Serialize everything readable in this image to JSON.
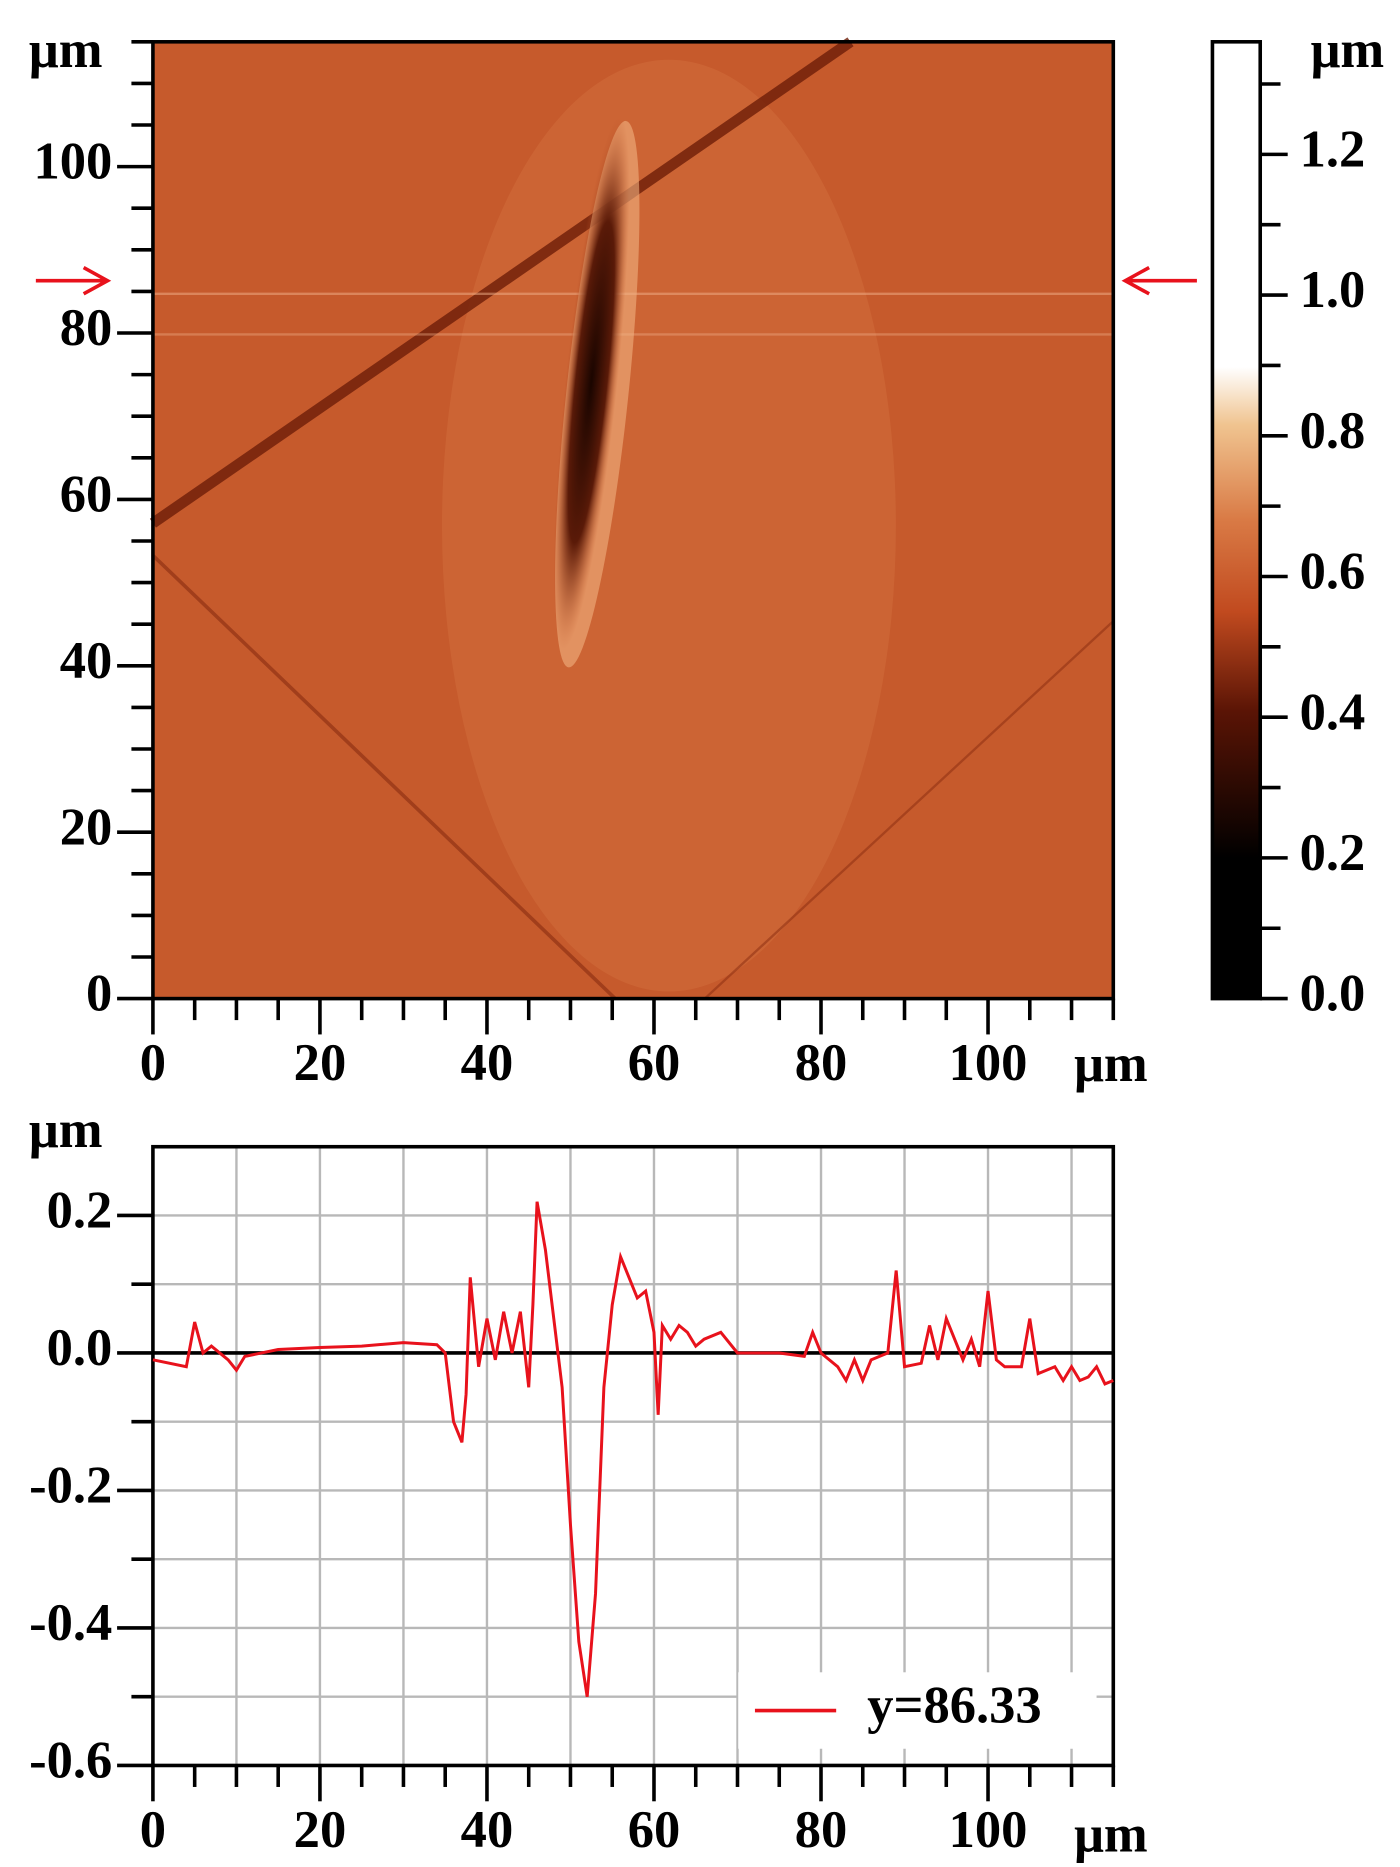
{
  "chart_data": [
    {
      "type": "image",
      "x_label": "μm",
      "y_label": "μm",
      "xlim": [
        0,
        115
      ],
      "ylim": [
        0,
        115
      ],
      "xticks": [
        0,
        20,
        40,
        60,
        80,
        100
      ],
      "yticks": [
        0,
        20,
        40,
        60,
        80,
        100
      ],
      "xminor_ticks": [
        5,
        10,
        15,
        25,
        30,
        35,
        45,
        50,
        55,
        65,
        70,
        75,
        85,
        90,
        95,
        105,
        110,
        115
      ],
      "yminor_ticks": [
        5,
        10,
        15,
        25,
        30,
        35,
        45,
        50,
        55,
        65,
        70,
        75,
        85,
        90,
        95,
        105,
        110,
        115
      ],
      "colorbar": {
        "label": "μm",
        "lim": [
          0,
          1.36
        ],
        "ticks": [
          {
            "value": 0,
            "label": "0.0"
          },
          {
            "value": 0.2,
            "label": "0.2"
          },
          {
            "value": 0.4,
            "label": "0.4"
          },
          {
            "value": 0.6,
            "label": "0.6"
          },
          {
            "value": 0.8,
            "label": "0.8"
          },
          {
            "value": 1.0,
            "label": "1.0"
          },
          1.2
        ],
        "minor_ticks": [
          0.1,
          0.3,
          0.5,
          0.7,
          0.9,
          1.1,
          1.3
        ]
      }
    },
    {
      "type": "line",
      "x_label": "μm",
      "y_label": "μm",
      "xlim": [
        0,
        115
      ],
      "ylim": [
        -0.6,
        0.3
      ],
      "xticks": [
        0,
        20,
        40,
        60,
        80,
        100
      ],
      "xminor_ticks": [
        5,
        10,
        15,
        25,
        30,
        35,
        45,
        50,
        55,
        65,
        70,
        75,
        85,
        90,
        95,
        105,
        110,
        115
      ],
      "yticks": [
        -0.6,
        -0.4,
        -0.2,
        {
          "value": 0,
          "label": "0.0"
        },
        0.2
      ],
      "yminor_ticks": [
        -0.5,
        -0.3,
        -0.1,
        0.1
      ],
      "grid": true,
      "legend": "lower right",
      "x": [
        0,
        4,
        5,
        6,
        7,
        9,
        10,
        11,
        15,
        20,
        25,
        30,
        34,
        35,
        36,
        37,
        37.5,
        38,
        39,
        40,
        41,
        42,
        43,
        44,
        45,
        45.5,
        46,
        47,
        48,
        49,
        50,
        51,
        52,
        53,
        54,
        55,
        56,
        57,
        58,
        59,
        60,
        60.5,
        61,
        62,
        63,
        64,
        65,
        66,
        68,
        70,
        75,
        78,
        79,
        80,
        82,
        83,
        84,
        85,
        86,
        87,
        88,
        89,
        90,
        92,
        93,
        94,
        95,
        96,
        97,
        98,
        99,
        100,
        101,
        102,
        104,
        105,
        106,
        108,
        109,
        110,
        111,
        112,
        113,
        114,
        115
      ],
      "series": [
        {
          "name": "y=86.33",
          "color": "#e8121c",
          "values": [
            -0.01,
            -0.02,
            0.045,
            0.0,
            0.01,
            -0.01,
            -0.025,
            -0.005,
            0.005,
            0.008,
            0.01,
            0.015,
            0.012,
            0.0,
            -0.1,
            -0.13,
            -0.06,
            0.11,
            -0.02,
            0.05,
            -0.01,
            0.06,
            0.0,
            0.06,
            -0.05,
            0.07,
            0.22,
            0.15,
            0.05,
            -0.05,
            -0.25,
            -0.42,
            -0.5,
            -0.35,
            -0.05,
            0.07,
            0.14,
            0.11,
            0.08,
            0.09,
            0.03,
            -0.09,
            0.04,
            0.02,
            0.04,
            0.03,
            0.01,
            0.02,
            0.03,
            0.0,
            0.0,
            -0.005,
            0.03,
            0.0,
            -0.02,
            -0.04,
            -0.01,
            -0.04,
            -0.01,
            -0.005,
            0.0,
            0.12,
            -0.02,
            -0.015,
            0.04,
            -0.01,
            0.05,
            0.02,
            -0.01,
            0.02,
            -0.02,
            0.09,
            -0.01,
            -0.02,
            -0.02,
            0.05,
            -0.03,
            -0.02,
            -0.04,
            -0.02,
            -0.04,
            -0.035,
            -0.02,
            -0.045,
            -0.04
          ]
        }
      ]
    }
  ]
}
